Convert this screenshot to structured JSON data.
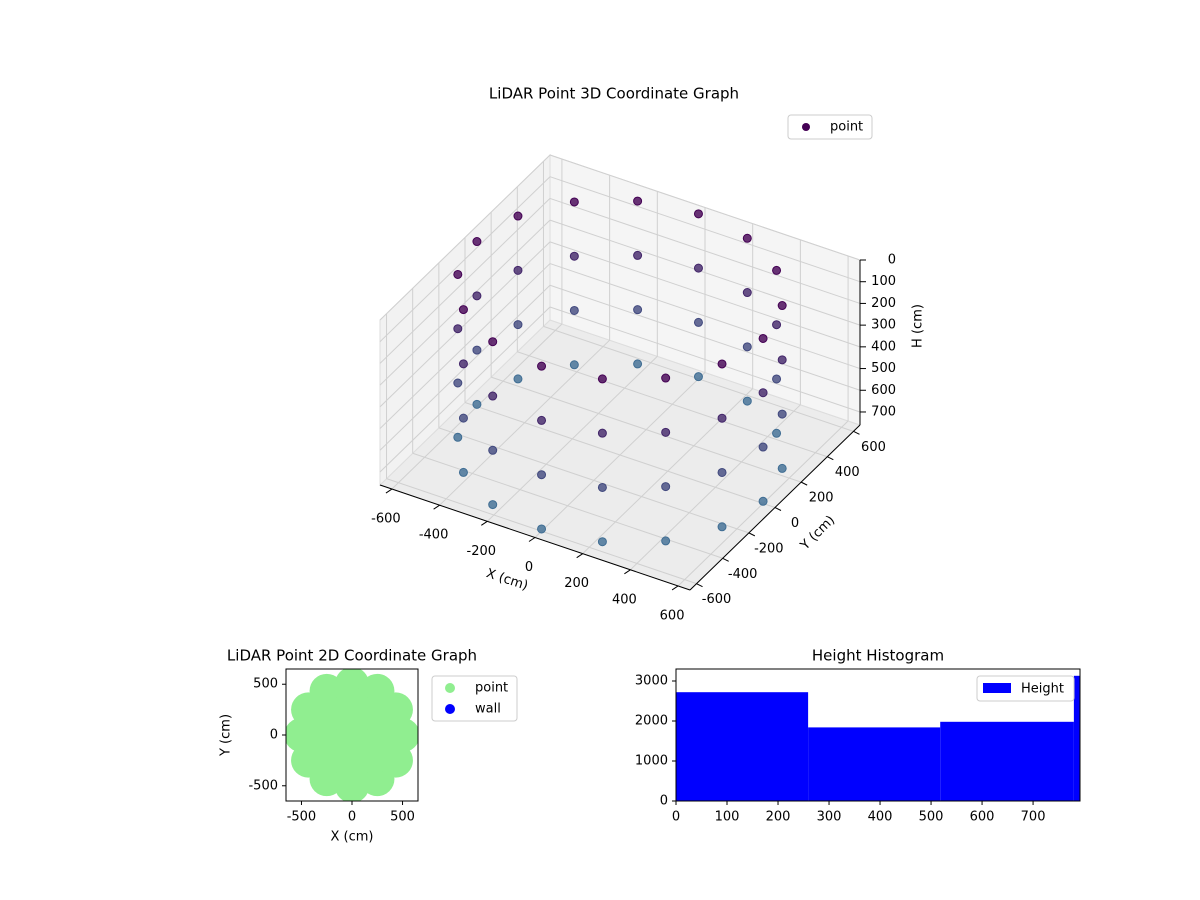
{
  "chart_data": [
    {
      "type": "scatter3d",
      "title": "LiDAR Point 3D Coordinate Graph",
      "xlabel": "X (cm)",
      "ylabel": "Y (cm)",
      "zlabel": "H (cm)",
      "xlim": [
        -650,
        650
      ],
      "ylim": [
        -650,
        650
      ],
      "zlim": [
        760,
        0
      ],
      "xticks": [
        -600,
        -400,
        -200,
        0,
        200,
        400,
        600
      ],
      "yticks": [
        -600,
        -400,
        -200,
        0,
        200,
        400,
        600
      ],
      "zticks": [
        0,
        100,
        200,
        300,
        400,
        500,
        600,
        700
      ],
      "colormap": [
        "#440154",
        "#3f6e94"
      ],
      "legend": "upper right",
      "grid": true,
      "series": [
        {
          "name": "point",
          "color": "#440154",
          "x": [
            600,
            554,
            424,
            230,
            0,
            -230,
            -424,
            -554,
            -600,
            -554,
            -424,
            -230,
            0,
            230,
            424,
            554,
            600,
            554,
            424,
            230,
            0,
            -230,
            -424,
            -554,
            -600,
            -554,
            -424,
            -230,
            0,
            230,
            424,
            554,
            600,
            554,
            424,
            230,
            0,
            -230,
            -424,
            -554,
            -600,
            -554,
            -424,
            -230,
            0,
            230,
            424,
            554,
            600,
            554,
            424,
            230,
            0,
            -230,
            -424,
            -554,
            -600,
            -554,
            -424,
            -230,
            0,
            230,
            424,
            554
          ],
          "y": [
            0,
            230,
            424,
            554,
            600,
            554,
            424,
            230,
            0,
            -230,
            -424,
            -554,
            -600,
            -554,
            -424,
            -230,
            0,
            230,
            424,
            554,
            600,
            554,
            424,
            230,
            0,
            -230,
            -424,
            -554,
            -600,
            -554,
            -424,
            -230,
            0,
            230,
            424,
            554,
            600,
            554,
            424,
            230,
            0,
            -230,
            -424,
            -554,
            -600,
            -554,
            -424,
            -230,
            0,
            230,
            424,
            554,
            600,
            554,
            424,
            230,
            0,
            -230,
            -424,
            -554,
            -600,
            -554,
            -424,
            -230
          ],
          "h": [
            0,
            0,
            0,
            0,
            0,
            0,
            0,
            0,
            0,
            0,
            0,
            0,
            0,
            0,
            0,
            0,
            250,
            250,
            250,
            250,
            250,
            250,
            250,
            250,
            250,
            250,
            250,
            250,
            250,
            250,
            250,
            250,
            500,
            500,
            500,
            500,
            500,
            500,
            500,
            500,
            500,
            500,
            500,
            500,
            500,
            500,
            500,
            500,
            750,
            750,
            750,
            750,
            750,
            750,
            750,
            750,
            750,
            750,
            750,
            750,
            750,
            750,
            750,
            750
          ]
        }
      ]
    },
    {
      "type": "scatter",
      "title": "LiDAR Point 2D Coordinate Graph",
      "xlabel": "X (cm)",
      "ylabel": "Y (cm)",
      "xlim": [
        -653,
        653
      ],
      "ylim": [
        -650,
        650
      ],
      "xticks": [
        -500,
        0,
        500
      ],
      "yticks": [
        -500,
        0,
        500
      ],
      "legend": "outside right",
      "series": [
        {
          "name": "point",
          "color": "#90ee90",
          "x": [
            0,
            500,
            433,
            250,
            0,
            -250,
            -433,
            -500,
            -433,
            -250,
            0,
            250,
            433,
            300,
            0,
            -300,
            0,
            212,
            -212,
            -212,
            212
          ],
          "y": [
            0,
            0,
            250,
            433,
            500,
            433,
            250,
            0,
            -250,
            -433,
            -500,
            -433,
            -250,
            0,
            300,
            0,
            -300,
            212,
            212,
            -212,
            -212
          ]
        },
        {
          "name": "wall",
          "color": "#0000ff",
          "x": [],
          "y": []
        }
      ]
    },
    {
      "type": "histogram",
      "title": "Height Histogram",
      "xlim": [
        0,
        792
      ],
      "ylim": [
        0,
        3300
      ],
      "xticks": [
        0,
        100,
        200,
        300,
        400,
        500,
        600,
        700
      ],
      "yticks": [
        0,
        1000,
        2000,
        3000
      ],
      "legend": "upper right",
      "series": [
        {
          "name": "Height",
          "color": "#0000ff",
          "bins": [
            0,
            259,
            518,
            780,
            792
          ],
          "values": [
            2720,
            1840,
            1980,
            3130
          ]
        }
      ]
    }
  ]
}
